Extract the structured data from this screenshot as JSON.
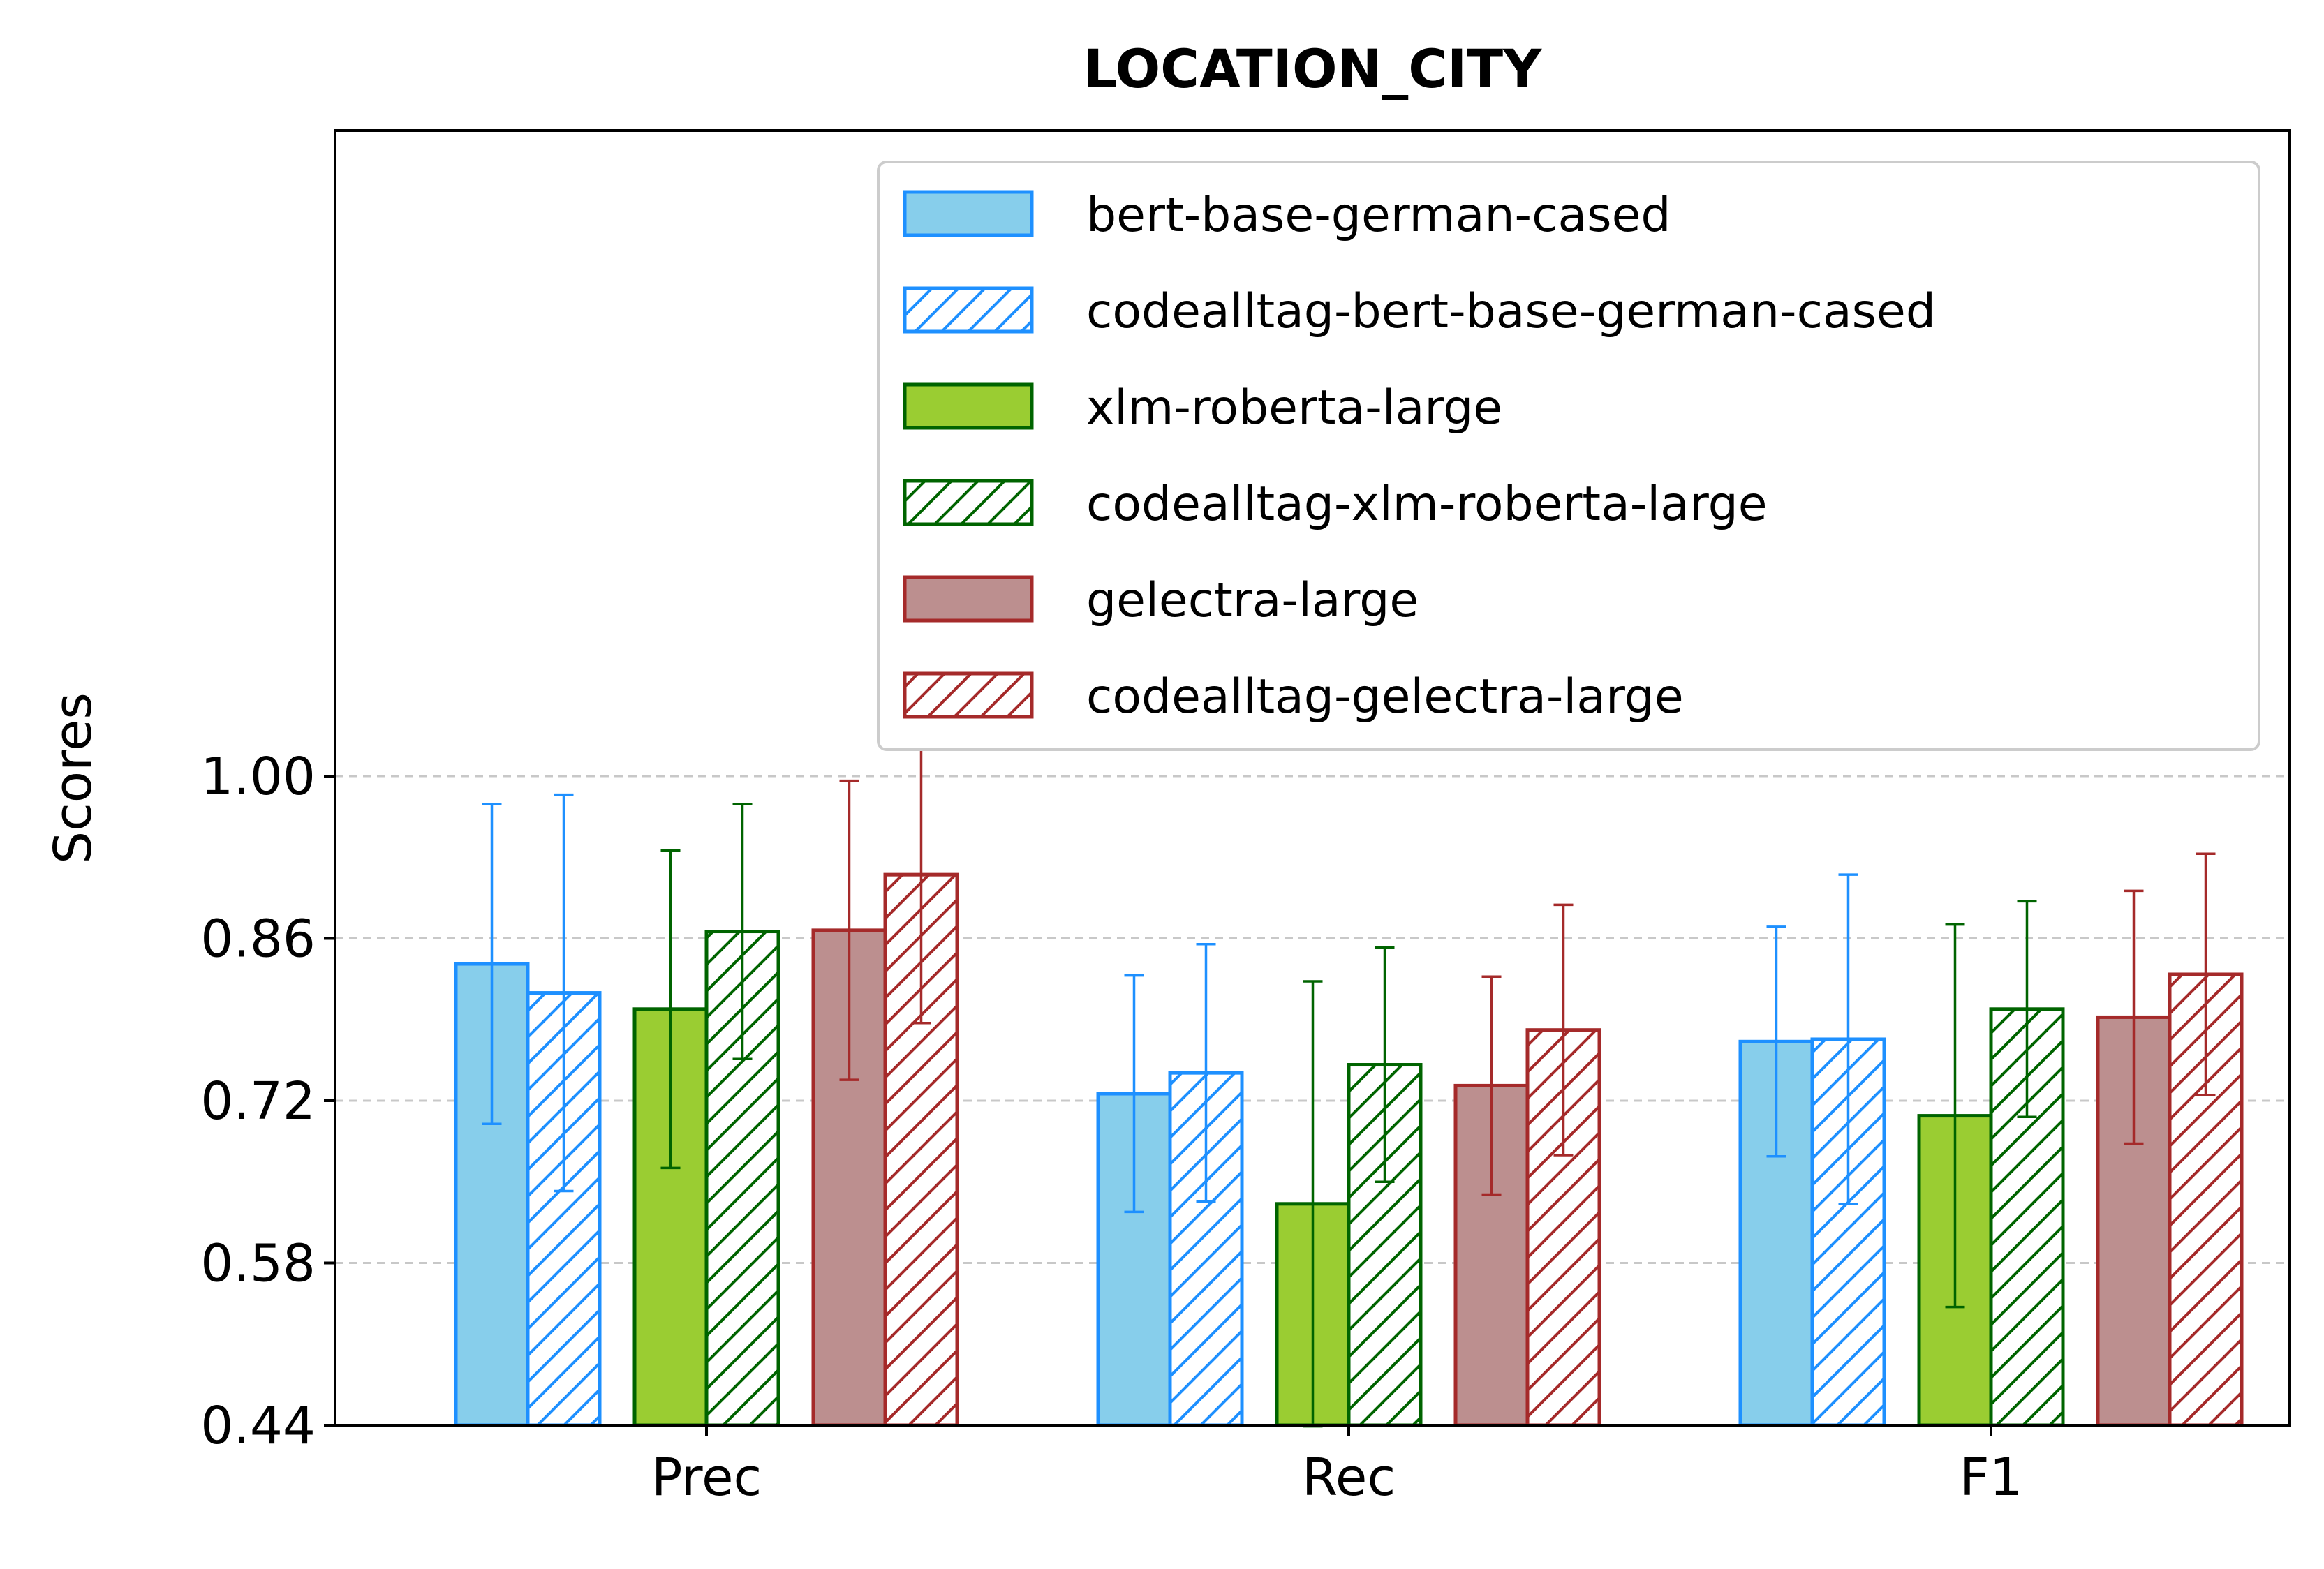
{
  "chart_data": {
    "type": "bar",
    "title": "LOCATION_CITY",
    "xlabel": "",
    "ylabel": "Scores",
    "categories": [
      "Prec",
      "Rec",
      "F1"
    ],
    "ylim": [
      0.44,
      1.0
    ],
    "yticks": [
      "0.44",
      "0.58",
      "0.72",
      "0.86",
      "1.00"
    ],
    "grid": "y, dashed",
    "legend_position": "upper right",
    "series": [
      {
        "name": "bert-base-german-cased",
        "values": [
          0.838,
          0.726,
          0.771
        ],
        "errors": [
          0.138,
          0.102,
          0.099
        ],
        "color": "#87CEEB",
        "edge": "#1E90FF",
        "hatch": false
      },
      {
        "name": "codealltag-bert-base-german-cased",
        "values": [
          0.813,
          0.744,
          0.773
        ],
        "errors": [
          0.171,
          0.111,
          0.142
        ],
        "color": "#ffffff",
        "edge": "#1E90FF",
        "hatch": true
      },
      {
        "name": "xlm-roberta-large",
        "values": [
          0.799,
          0.631,
          0.707
        ],
        "errors": [
          0.137,
          0.192,
          0.165
        ],
        "color": "#9ACD32",
        "edge": "#006400",
        "hatch": false
      },
      {
        "name": "codealltag-xlm-roberta-large",
        "values": [
          0.866,
          0.751,
          0.799
        ],
        "errors": [
          0.11,
          0.101,
          0.093
        ],
        "color": "#ffffff",
        "edge": "#006400",
        "hatch": true
      },
      {
        "name": "gelectra-large",
        "values": [
          0.867,
          0.733,
          0.792
        ],
        "errors": [
          0.129,
          0.094,
          0.109
        ],
        "color": "#BC8F8F",
        "edge": "#A52A2A",
        "hatch": false
      },
      {
        "name": "codealltag-gelectra-large",
        "values": [
          0.915,
          0.781,
          0.829
        ],
        "errors": [
          0.128,
          0.108,
          0.104
        ],
        "color": "#ffffff",
        "edge": "#A52A2A",
        "hatch": true
      }
    ]
  }
}
